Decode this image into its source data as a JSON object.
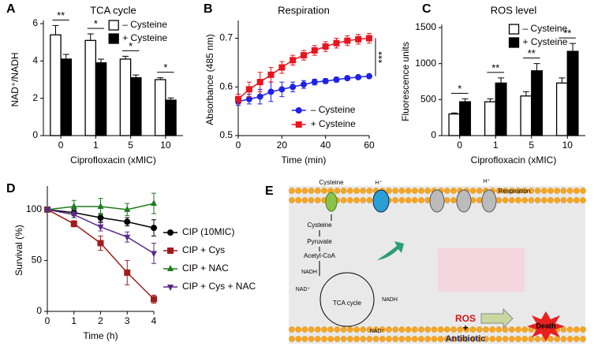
{
  "chart_data": [
    {
      "type": "bar",
      "panel": "A",
      "title": "TCA cycle",
      "ylabel": "NAD⁺/NADH",
      "xlabel": "Ciprofloxacin (xMIC)",
      "categories": [
        "0",
        "1",
        "5",
        "10"
      ],
      "ylim": [
        0,
        6
      ],
      "yticks": [
        0,
        2,
        4,
        6
      ],
      "legend": "upper right",
      "series": [
        {
          "name": "– Cysteine",
          "color": "#ffffff",
          "values": [
            5.4,
            5.1,
            4.1,
            3.0
          ],
          "errors": [
            0.5,
            0.35,
            0.15,
            0.1
          ]
        },
        {
          "name": "+ Cysteine",
          "color": "#000000",
          "values": [
            4.1,
            3.9,
            3.1,
            1.9
          ],
          "errors": [
            0.25,
            0.2,
            0.15,
            0.12
          ]
        }
      ],
      "significance": [
        "**",
        "*",
        "*",
        "*"
      ]
    },
    {
      "type": "line",
      "panel": "B",
      "title": "Respiration",
      "ylabel": "Absorbance (485 nm)",
      "xlabel": "Time (min)",
      "x": [
        0,
        5,
        10,
        15,
        20,
        25,
        30,
        35,
        40,
        45,
        50,
        55,
        60
      ],
      "xlim": [
        0,
        60
      ],
      "xticks": [
        0,
        20,
        40,
        60
      ],
      "ylim": [
        0.5,
        0.73
      ],
      "yticks": [
        0.5,
        0.6,
        0.7
      ],
      "legend": "lower right",
      "series": [
        {
          "name": "– Cysteine",
          "color": "#1f22e6",
          "marker": "circle",
          "values": [
            0.57,
            0.575,
            0.58,
            0.59,
            0.595,
            0.6,
            0.605,
            0.61,
            0.612,
            0.615,
            0.618,
            0.62,
            0.622
          ],
          "errors": [
            0.008,
            0.01,
            0.015,
            0.02,
            0.015,
            0.01,
            0.008,
            0.006,
            0.005,
            0.005,
            0.004,
            0.004,
            0.004
          ]
        },
        {
          "name": "+ Cysteine",
          "color": "#e8151e",
          "marker": "square",
          "values": [
            0.575,
            0.595,
            0.61,
            0.625,
            0.64,
            0.655,
            0.665,
            0.675,
            0.683,
            0.69,
            0.695,
            0.698,
            0.7
          ],
          "errors": [
            0.01,
            0.015,
            0.02,
            0.015,
            0.012,
            0.01,
            0.01,
            0.01,
            0.01,
            0.01,
            0.01,
            0.01,
            0.01
          ]
        }
      ],
      "annotation": "***"
    },
    {
      "type": "bar",
      "panel": "C",
      "title": "ROS level",
      "ylabel": "Fluorescence units",
      "xlabel": "Ciprofloxacin (xMIC)",
      "categories": [
        "0",
        "1",
        "5",
        "10"
      ],
      "ylim": [
        0,
        1500
      ],
      "yticks": [
        0,
        500,
        1000,
        1500
      ],
      "legend": "upper right",
      "series": [
        {
          "name": "– Cysteine",
          "color": "#ffffff",
          "values": [
            300,
            470,
            550,
            730
          ],
          "errors": [
            15,
            40,
            60,
            70
          ]
        },
        {
          "name": "+ Cysteine",
          "color": "#000000",
          "values": [
            470,
            730,
            900,
            1170
          ],
          "errors": [
            40,
            70,
            100,
            110
          ]
        }
      ],
      "significance": [
        "*",
        "**",
        "**",
        "**"
      ]
    },
    {
      "type": "line",
      "panel": "D",
      "ylabel": "Survival (%)",
      "xlabel": "Time (h)",
      "x": [
        0,
        1,
        2,
        3,
        4
      ],
      "xlim": [
        0,
        4
      ],
      "xticks": [
        0,
        1,
        2,
        3,
        4
      ],
      "ylim": [
        0,
        120
      ],
      "yticks": [
        0,
        50,
        100
      ],
      "legend": "right",
      "series": [
        {
          "name": "CIP (10MIC)",
          "color": "#000000",
          "marker": "circle",
          "values": [
            100,
            97,
            92,
            88,
            82
          ],
          "errors": [
            2,
            3,
            4,
            4,
            8
          ]
        },
        {
          "name": "CIP + Cys",
          "color": "#a01c1c",
          "marker": "square",
          "values": [
            100,
            86,
            67,
            38,
            12
          ],
          "errors": [
            2,
            3,
            7,
            12,
            4
          ]
        },
        {
          "name": "CIP + NAC",
          "color": "#1e7a1e",
          "marker": "triangle",
          "values": [
            100,
            103,
            103,
            100,
            106
          ],
          "errors": [
            2,
            6,
            8,
            6,
            10
          ]
        },
        {
          "name": "CIP + Cys + NAC",
          "color": "#5b2a86",
          "marker": "triangle-down",
          "values": [
            100,
            95,
            83,
            73,
            57
          ],
          "errors": [
            2,
            3,
            4,
            5,
            10
          ]
        }
      ]
    }
  ],
  "diagram": {
    "panel": "E",
    "labels": [
      "Cysteine",
      "Cysteine",
      "Pyruvate",
      "Acetyl-CoA",
      "TCA cycle",
      "NADH",
      "NAD⁺",
      "NADH",
      "NAD⁺",
      "Respiration",
      "H⁺",
      "H⁺",
      "ROS",
      "+",
      "Antibiotic",
      "Death"
    ]
  }
}
